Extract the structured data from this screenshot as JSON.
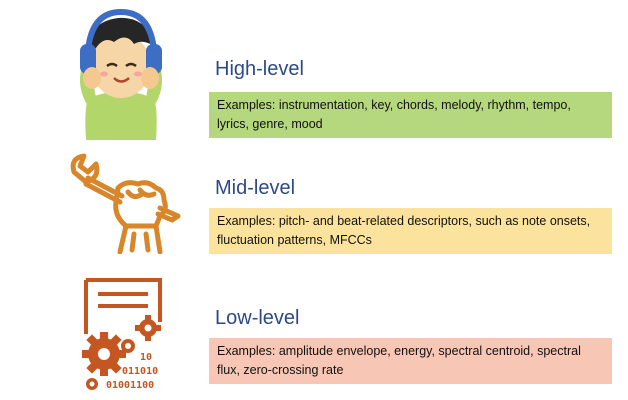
{
  "levels": [
    {
      "title": "High-level",
      "description": "Examples: instrumentation, key, chords, melody, rhythm, tempo, lyrics, genre, mood",
      "box_color": "#b5d77e",
      "icon": "child-with-headphones-icon"
    },
    {
      "title": "Mid-level",
      "description": "Examples: pitch- and beat-related descriptors, such as note onsets, fluctuation patterns, MFCCs",
      "box_color": "#fbe29d",
      "icon": "fist-holding-wrench-icon"
    },
    {
      "title": "Low-level",
      "description": "Examples: amplitude envelope, energy, spectral centroid, spectral flux, zero-crossing rate",
      "box_color": "#f8c6b4",
      "icon": "document-gears-binary-icon",
      "binary_lines": [
        "10",
        "011010",
        "01001100"
      ]
    }
  ],
  "colors": {
    "title": "#2e4a86",
    "wrench_icon": "#d7862a",
    "gears_icon": "#c45622"
  }
}
